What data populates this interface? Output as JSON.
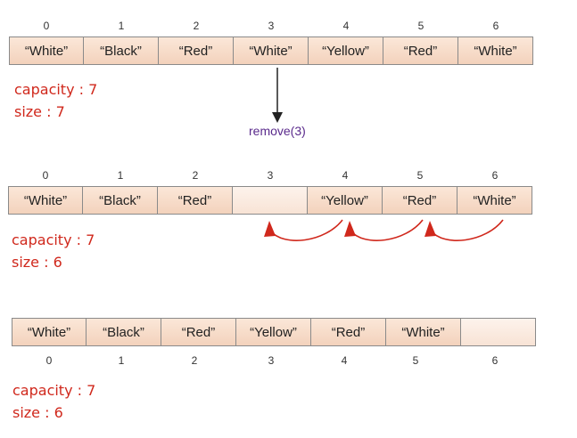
{
  "arrays": [
    {
      "indices": [
        "0",
        "1",
        "2",
        "3",
        "4",
        "5",
        "6"
      ],
      "cells": [
        "“White”",
        "“Black”",
        "“Red”",
        "“White”",
        "“Yellow”",
        "“Red”",
        "“White”"
      ],
      "capacity_label": "capacity : 7",
      "size_label": "size : 7"
    },
    {
      "indices": [
        "0",
        "1",
        "2",
        "3",
        "4",
        "5",
        "6"
      ],
      "cells": [
        "“White”",
        "“Black”",
        "“Red”",
        "",
        "“Yellow”",
        "“Red”",
        "“White”"
      ],
      "capacity_label": "capacity : 7",
      "size_label": "size : 6"
    },
    {
      "indices": [
        "0",
        "1",
        "2",
        "3",
        "4",
        "5",
        "6"
      ],
      "cells": [
        "“White”",
        "“Black”",
        "“Red”",
        "“Yellow”",
        "“Red”",
        "“White”",
        ""
      ],
      "capacity_label": "capacity : 7",
      "size_label": "size : 6"
    }
  ],
  "operation": "remove(3)",
  "colors": {
    "arrow_red": "#d0281c",
    "operation_purple": "#5a2a8c"
  }
}
